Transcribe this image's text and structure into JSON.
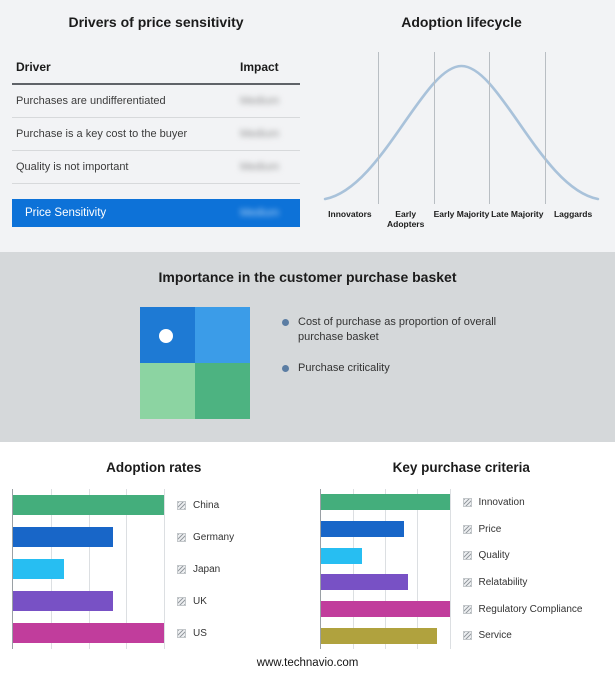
{
  "footer": "www.technavio.com",
  "colors": {
    "accent_blue": "#0d72d8",
    "bullet_dot": "#5b7da3",
    "top_background": "#f2f3f5",
    "mid_background": "#d5d8da"
  },
  "drivers_panel": {
    "title": "Drivers of price sensitivity",
    "columns": [
      "Driver",
      "Impact"
    ],
    "rows": [
      {
        "driver": "Purchases are undifferentiated",
        "impact": "Medium"
      },
      {
        "driver": "Purchase is a key cost to the buyer",
        "impact": "Medium"
      },
      {
        "driver": "Quality is not important",
        "impact": "Medium"
      }
    ],
    "summary_row": {
      "label": "Price Sensitivity",
      "impact": "Medium"
    },
    "impact_values_blurred": true
  },
  "basket_panel": {
    "title": "Importance in the customer purchase basket",
    "bullets": [
      "Cost of purchase as proportion of overall purchase basket",
      "Purchase criticality"
    ],
    "quadrant_colors": [
      "#1e7ad4",
      "#3b9ce8",
      "#8cd4a2",
      "#4db381"
    ]
  },
  "chart_data": [
    {
      "type": "line",
      "subtype": "bell-curve",
      "title": "Adoption lifecycle",
      "categories": [
        "Innovators",
        "Early Adopters",
        "Early Majority",
        "Late Majority",
        "Laggards"
      ],
      "curve_color": "#a9c2da",
      "legend_position": "none"
    },
    {
      "type": "bar",
      "orientation": "horizontal",
      "title": "Adoption rates",
      "categories": [
        "China",
        "Germany",
        "Japan",
        "UK",
        "US"
      ],
      "values": [
        100,
        66,
        34,
        66,
        100
      ],
      "colors": [
        "#44ae7c",
        "#1866c8",
        "#27bef2",
        "#7851c5",
        "#c13d9c"
      ],
      "xlim": [
        0,
        100
      ],
      "grid": true,
      "legend_position": "right"
    },
    {
      "type": "bar",
      "orientation": "horizontal",
      "title": "Key purchase criteria",
      "categories": [
        "Innovation",
        "Price",
        "Quality",
        "Relatability",
        "Regulatory Compliance",
        "Service"
      ],
      "values": [
        100,
        65,
        32,
        68,
        100,
        90
      ],
      "colors": [
        "#44ae7c",
        "#1866c8",
        "#27bef2",
        "#7851c5",
        "#c13d9c",
        "#b0a23e"
      ],
      "xlim": [
        0,
        100
      ],
      "grid": true,
      "legend_position": "right"
    }
  ]
}
